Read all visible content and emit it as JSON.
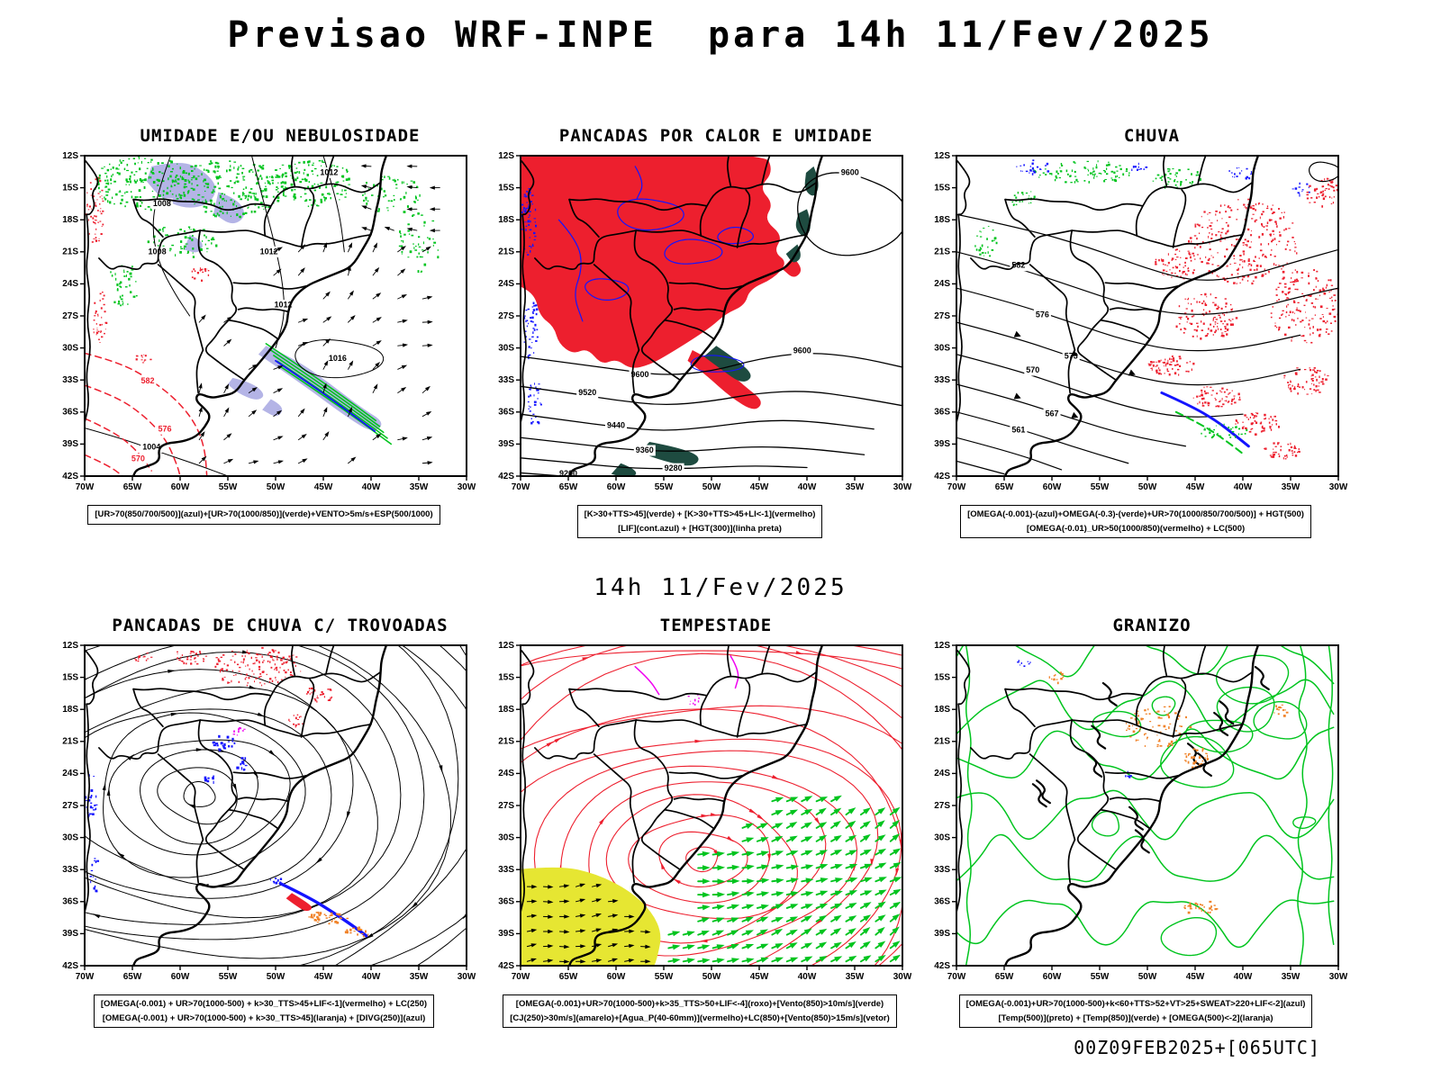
{
  "header": {
    "title": "Previsao WRF-INPE  para 14h 11/Fev/2025"
  },
  "mid_caption": {
    "text": "14h 11/Fev/2025"
  },
  "footer": {
    "stamp": "00Z09FEB2025+[065UTC]"
  },
  "axes": {
    "lat_ticks": [
      "12S",
      "15S",
      "18S",
      "21S",
      "24S",
      "27S",
      "30S",
      "33S",
      "36S",
      "39S",
      "42S"
    ],
    "lon_ticks": [
      "70W",
      "65W",
      "60W",
      "55W",
      "50W",
      "45W",
      "40W",
      "35W",
      "30W"
    ]
  },
  "palette": {
    "red": "#ed1f2e",
    "green": "#00c41e",
    "blue": "#1414ff",
    "lavender": "#b4b4e6",
    "teal": "#1e4b40",
    "yellow": "#e6e632",
    "orange": "#f08228",
    "magenta": "#f000f0"
  },
  "panels": [
    {
      "id": "umidade",
      "title": "UMIDADE E/OU NEBULOSIDADE",
      "style": "umidade",
      "map_labels": [
        "1004",
        "1008",
        "1012",
        "1016",
        "570",
        "576",
        "582"
      ],
      "caption_lines": [
        "[UR>70(850/700/500)](azul)+[UR>70(1000/850)](verde)+VENTO>5m/s+ESP(500/1000)"
      ]
    },
    {
      "id": "pancadas-calor-umidade",
      "title": "PANCADAS POR CALOR E UMIDADE",
      "style": "pancadas",
      "map_labels": [
        "9200",
        "9280",
        "9360",
        "9440",
        "9520",
        "9600"
      ],
      "caption_lines": [
        "[K>30+TTS>45](verde) + [K>30+TTS>45+LI<-1](vermelho)",
        "[LIF](cont.azul) + [HGT(300)](linha preta)"
      ]
    },
    {
      "id": "chuva",
      "title": "CHUVA",
      "style": "chuva",
      "map_labels": [
        "561",
        "567",
        "570",
        "573",
        "576",
        "582"
      ],
      "caption_lines": [
        "[OMEGA(-0.001)-(azul)+OMEGA(-0.3)-(verde)+UR>70(1000/850/700/500)] + HGT(500)",
        "[OMEGA(-0.01)_UR>50(1000/850)(vermelho) + LC(500)"
      ]
    },
    {
      "id": "trovoadas",
      "title": "PANCADAS DE CHUVA C/ TROVOADAS",
      "style": "trovoadas",
      "map_labels": [],
      "caption_lines": [
        "[OMEGA(-0.001) + UR>70(1000-500) + k>30_TTS>45+LIF<-1](vermelho) + LC(250)",
        "[OMEGA(-0.001) + UR>70(1000-500) + k>30_TTS>45](laranja) + [DIVG(250)](azul)"
      ]
    },
    {
      "id": "tempestade",
      "title": "TEMPESTADE",
      "style": "tempestade",
      "map_labels": [],
      "caption_lines": [
        "[OMEGA(-0.001)+UR>70(1000-500)+k>35_TTS>50+LIF<-4](roxo)+[Vento(850)>10m/s](verde)",
        "[CJ(250)>30m/s](amarelo)+[Agua_P(40-60mm)](vermelho)+LC(850)+[Vento(850)>15m/s](vetor)"
      ]
    },
    {
      "id": "granizo",
      "title": "GRANIZO",
      "style": "granizo",
      "map_labels": [],
      "caption_lines": [
        "[OMEGA(-0.001)+UR>70(1000-500)+k<60+TTS>52+VT>25+SWEAT>220+LIF<-2](azul)",
        "[Temp(500)](preto) + [Temp(850)](verde) + [OMEGA(500)<-2](laranja)"
      ]
    }
  ]
}
